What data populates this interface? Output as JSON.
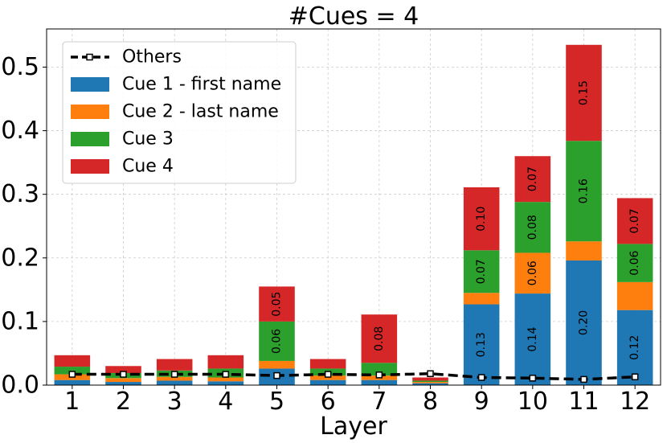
{
  "chart_data": {
    "type": "bar",
    "stacked": true,
    "title": "#Cues = 4",
    "xlabel": "Layer",
    "ylabel": "",
    "categories": [
      "1",
      "2",
      "3",
      "4",
      "5",
      "6",
      "7",
      "8",
      "9",
      "10",
      "11",
      "12"
    ],
    "ylim": [
      0,
      0.56
    ],
    "yticks": [
      "0.0",
      "0.1",
      "0.2",
      "0.3",
      "0.4",
      "0.5"
    ],
    "grid": true,
    "legend_position": "top-left",
    "series": [
      {
        "name": "Cue 1 - first name",
        "color": "#1f77b4",
        "values": [
          0.008,
          0.005,
          0.007,
          0.006,
          0.026,
          0.008,
          0.008,
          0.003,
          0.127,
          0.144,
          0.196,
          0.118
        ],
        "labels": [
          "",
          "",
          "",
          "",
          "",
          "",
          "",
          "",
          "0.13",
          "0.14",
          "0.20",
          "0.12"
        ]
      },
      {
        "name": "Cue 2 - last name",
        "color": "#ff7f0e",
        "values": [
          0.009,
          0.006,
          0.006,
          0.006,
          0.012,
          0.007,
          0.007,
          0.002,
          0.018,
          0.064,
          0.03,
          0.044
        ],
        "labels": [
          "",
          "",
          "",
          "",
          "",
          "",
          "",
          "",
          "",
          "0.06",
          "",
          ""
        ]
      },
      {
        "name": "Cue 3",
        "color": "#2ca02c",
        "values": [
          0.012,
          0.008,
          0.01,
          0.014,
          0.062,
          0.011,
          0.02,
          0.002,
          0.067,
          0.08,
          0.158,
          0.06
        ],
        "labels": [
          "",
          "",
          "",
          "",
          "0.06",
          "",
          "",
          "",
          "0.07",
          "0.08",
          "0.16",
          "0.06"
        ]
      },
      {
        "name": "Cue 4",
        "color": "#d62728",
        "values": [
          0.018,
          0.011,
          0.018,
          0.021,
          0.055,
          0.015,
          0.076,
          0.005,
          0.099,
          0.072,
          0.151,
          0.072
        ],
        "labels": [
          "",
          "",
          "",
          "",
          "0.05",
          "",
          "0.08",
          "",
          "0.10",
          "0.07",
          "0.15",
          "0.07"
        ]
      }
    ],
    "line": {
      "name": "Others",
      "color": "#000000",
      "style": "dashed",
      "values": [
        0.017,
        0.017,
        0.017,
        0.017,
        0.015,
        0.017,
        0.016,
        0.018,
        0.012,
        0.011,
        0.009,
        0.013
      ]
    }
  }
}
